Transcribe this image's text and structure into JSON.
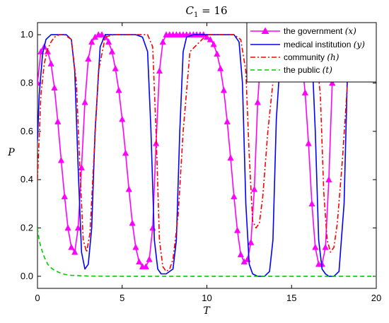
{
  "chart_data": {
    "type": "line",
    "title": "C",
    "title_subscript": "1",
    "title_suffix": " = 16",
    "xlabel": "T",
    "ylabel": "P",
    "xlim": [
      0,
      20
    ],
    "ylim": [
      -0.05,
      1.05
    ],
    "xticks": [
      0,
      5,
      10,
      15,
      20
    ],
    "yticks": [
      0.0,
      0.2,
      0.4,
      0.6,
      0.8,
      1.0
    ],
    "ytick_labels": [
      "0.0",
      "0.2",
      "0.4",
      "0.6",
      "0.8",
      "1.0"
    ],
    "grid": false,
    "legend_position": "top-right",
    "series": [
      {
        "name": "the government (x)",
        "color": "#ff00ff",
        "style": "solid",
        "marker": "triangle",
        "x": [
          0,
          0.2,
          0.4,
          0.6,
          0.8,
          1.0,
          1.2,
          1.4,
          1.6,
          1.8,
          2.0,
          2.2,
          2.4,
          2.6,
          2.8,
          3.0,
          3.2,
          3.4,
          3.6,
          3.8,
          4.0,
          4.2,
          4.4,
          4.6,
          4.8,
          5.0,
          5.2,
          5.4,
          5.6,
          5.8,
          6.0,
          6.2,
          6.4,
          6.6,
          6.8,
          7.0,
          7.2,
          7.4,
          7.6,
          7.8,
          8.0,
          8.2,
          8.4,
          8.6,
          8.8,
          9.0,
          9.2,
          9.4,
          9.6,
          9.8,
          10.0,
          10.2,
          10.4,
          10.6,
          10.8,
          11.0,
          11.2,
          11.4,
          11.6,
          11.8,
          12.0,
          12.2,
          12.4,
          12.6,
          12.8,
          13.0,
          13.2,
          13.4,
          13.6,
          13.8,
          14.0,
          14.2,
          14.4,
          14.6,
          14.8,
          15.0,
          15.2,
          15.4,
          15.6,
          15.8,
          16.0,
          16.2,
          16.4,
          16.6,
          16.8,
          17.0,
          17.2,
          17.4,
          17.6,
          17.8,
          18.0
        ],
        "values": [
          0.8,
          0.93,
          0.95,
          0.93,
          0.88,
          0.78,
          0.64,
          0.48,
          0.33,
          0.2,
          0.12,
          0.1,
          0.2,
          0.45,
          0.72,
          0.9,
          0.97,
          0.99,
          1.0,
          1.0,
          0.99,
          0.97,
          0.93,
          0.86,
          0.77,
          0.65,
          0.51,
          0.36,
          0.22,
          0.12,
          0.06,
          0.04,
          0.04,
          0.07,
          0.2,
          0.55,
          0.85,
          0.97,
          1.0,
          1.0,
          1.0,
          1.0,
          1.0,
          1.0,
          1.0,
          1.0,
          1.0,
          1.0,
          1.0,
          1.0,
          0.99,
          0.98,
          0.96,
          0.92,
          0.86,
          0.77,
          0.64,
          0.49,
          0.33,
          0.19,
          0.09,
          0.06,
          0.07,
          0.14,
          0.36,
          0.72,
          0.93,
          0.99,
          1.0,
          1.0,
          1.0,
          1.0,
          1.0,
          1.0,
          1.0,
          1.0,
          0.99,
          0.97,
          0.9,
          0.76,
          0.55,
          0.3,
          0.12,
          0.05,
          0.05,
          0.12,
          0.4,
          0.8,
          0.97,
          1.0,
          1.0
        ]
      },
      {
        "name": "medical institution (y)",
        "color": "#0000ff",
        "style": "solid",
        "marker": "none",
        "x": [
          0,
          0.1,
          0.3,
          0.5,
          0.8,
          1.1,
          1.4,
          1.7,
          2.0,
          2.2,
          2.4,
          2.6,
          2.8,
          3.0,
          3.2,
          3.4,
          3.7,
          4.0,
          4.3,
          4.6,
          5.0,
          5.4,
          5.8,
          6.2,
          6.5,
          6.7,
          6.9,
          7.1,
          7.3,
          7.6,
          8.0,
          8.2,
          8.4,
          8.6,
          8.8,
          9.2,
          10.0,
          11.0,
          11.6,
          11.9,
          12.1,
          12.3,
          12.5,
          12.7,
          13.0,
          13.4,
          13.7,
          13.9,
          14.1,
          14.4,
          15.0,
          15.6,
          16.0,
          16.2,
          16.4,
          16.6,
          16.8,
          17.0,
          17.2,
          17.5,
          17.8,
          18.1,
          18.3,
          18.5
        ],
        "values": [
          0.56,
          0.75,
          0.92,
          0.98,
          1.0,
          1.0,
          1.0,
          1.0,
          0.98,
          0.85,
          0.45,
          0.1,
          0.03,
          0.05,
          0.2,
          0.6,
          0.95,
          1.0,
          1.0,
          1.0,
          1.0,
          1.0,
          1.0,
          0.99,
          0.93,
          0.6,
          0.15,
          0.03,
          0.01,
          0.01,
          0.03,
          0.15,
          0.6,
          0.93,
          0.99,
          1.0,
          1.0,
          1.0,
          1.0,
          0.97,
          0.8,
          0.3,
          0.05,
          0.01,
          0.0,
          0.0,
          0.02,
          0.15,
          0.65,
          0.97,
          1.0,
          1.0,
          0.99,
          0.93,
          0.6,
          0.15,
          0.03,
          0.01,
          0.0,
          0.0,
          0.02,
          0.3,
          0.85,
          1.0
        ]
      },
      {
        "name": "community (h)",
        "color": "#ff0000",
        "style": "dash-dot",
        "marker": "none",
        "x": [
          0,
          0.2,
          0.4,
          0.6,
          0.8,
          1.0,
          1.3,
          1.6,
          2.0,
          2.3,
          2.5,
          2.7,
          2.9,
          3.1,
          3.3,
          3.6,
          4.0,
          4.5,
          5.0,
          5.5,
          6.0,
          6.5,
          6.8,
          7.0,
          7.2,
          7.4,
          7.6,
          7.8,
          8.0,
          8.3,
          8.6,
          9.0,
          10.0,
          11.0,
          11.6,
          12.0,
          12.3,
          12.5,
          12.7,
          12.9,
          13.1,
          13.3,
          13.6,
          14.0,
          14.3,
          14.6,
          15.0,
          15.5,
          16.0,
          16.4,
          16.7,
          16.9,
          17.1,
          17.3,
          17.5,
          17.7,
          18.0,
          18.3,
          18.6
        ],
        "values": [
          0.4,
          0.75,
          0.88,
          0.94,
          0.97,
          0.99,
          1.0,
          1.0,
          0.98,
          0.8,
          0.45,
          0.15,
          0.1,
          0.18,
          0.45,
          0.85,
          0.99,
          1.0,
          1.0,
          1.0,
          1.0,
          1.0,
          0.95,
          0.6,
          0.15,
          0.04,
          0.02,
          0.03,
          0.07,
          0.25,
          0.6,
          0.93,
          1.0,
          1.0,
          1.0,
          0.98,
          0.85,
          0.5,
          0.23,
          0.2,
          0.22,
          0.33,
          0.6,
          0.87,
          0.97,
          1.0,
          1.0,
          1.0,
          1.0,
          0.96,
          0.75,
          0.35,
          0.15,
          0.1,
          0.12,
          0.22,
          0.48,
          0.8,
          0.97
        ]
      },
      {
        "name": "the public (t)",
        "color": "#00cc00",
        "style": "dashed",
        "marker": "none",
        "x": [
          0,
          0.1,
          0.2,
          0.4,
          0.6,
          0.8,
          1.0,
          1.3,
          1.6,
          2.0,
          3.0,
          5.0,
          10.0,
          15.0,
          20.0
        ],
        "values": [
          0.2,
          0.15,
          0.12,
          0.08,
          0.05,
          0.035,
          0.025,
          0.015,
          0.008,
          0.004,
          0.001,
          0.0,
          0.0,
          0.0,
          0.0
        ]
      }
    ]
  },
  "legend": {
    "entries": [
      {
        "label": "the government",
        "var": "(x)"
      },
      {
        "label": "medical institution",
        "var": "(y)"
      },
      {
        "label": "community",
        "var": "(h)"
      },
      {
        "label": "the public",
        "var": "(t)"
      }
    ]
  }
}
